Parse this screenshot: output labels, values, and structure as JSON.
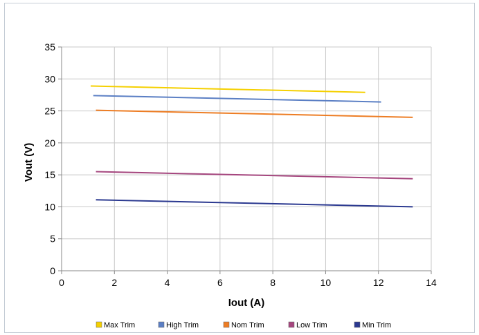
{
  "chart_data": {
    "type": "line",
    "title": "",
    "xlabel": "Iout (A)",
    "ylabel": "Vout (V)",
    "xlim": [
      0,
      14
    ],
    "ylim": [
      0,
      35
    ],
    "xticks": [
      0,
      2,
      4,
      6,
      8,
      10,
      12,
      14
    ],
    "yticks": [
      0,
      5,
      10,
      15,
      20,
      25,
      30,
      35
    ],
    "grid": true,
    "legend_position": "bottom",
    "series": [
      {
        "name": "Max Trim",
        "color": "#f5d000",
        "x": [
          1.1,
          11.5
        ],
        "y": [
          28.9,
          27.9
        ]
      },
      {
        "name": "High Trim",
        "color": "#5b7fc4",
        "x": [
          1.2,
          12.1
        ],
        "y": [
          27.4,
          26.4
        ]
      },
      {
        "name": "Nom Trim",
        "color": "#ed7d24",
        "x": [
          1.3,
          13.3
        ],
        "y": [
          25.1,
          24.0
        ]
      },
      {
        "name": "Low Trim",
        "color": "#a5467e",
        "x": [
          1.3,
          13.3
        ],
        "y": [
          15.5,
          14.4
        ]
      },
      {
        "name": "Min Trim",
        "color": "#2b3990",
        "x": [
          1.3,
          13.3
        ],
        "y": [
          11.1,
          10.0
        ]
      }
    ]
  }
}
